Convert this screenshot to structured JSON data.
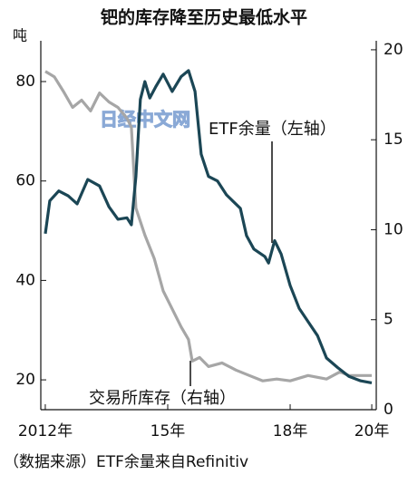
{
  "chart_data": {
    "type": "line",
    "title": "钯的库存降至历史最低水平",
    "y_unit": "吨",
    "source": "（数据来源）ETF余量来自Refinitiv",
    "watermark": "日经中文网",
    "xlim": [
      2011.89,
      2020.11
    ],
    "xticks": [
      {
        "value": 2012,
        "label": "2012年"
      },
      {
        "value": 2015,
        "label": "15年"
      },
      {
        "value": 2018,
        "label": "18年"
      },
      {
        "value": 2020,
        "label": "20年"
      }
    ],
    "ylim": [
      14,
      88.2
    ],
    "yticks": [
      20,
      40,
      60,
      80
    ],
    "y2lim": [
      0,
      20.5
    ],
    "y2ticks": [
      0,
      5,
      10,
      15,
      20
    ],
    "series": [
      {
        "name": "ETF余量（左轴）",
        "color": "#1b4655",
        "axis": "y",
        "x": [
          2012.0,
          2012.11,
          2012.33,
          2012.56,
          2012.78,
          2013.04,
          2013.33,
          2013.56,
          2013.78,
          2014.0,
          2014.11,
          2014.22,
          2014.33,
          2014.44,
          2014.56,
          2014.71,
          2014.89,
          2015.11,
          2015.33,
          2015.51,
          2015.67,
          2015.82,
          2016.0,
          2016.22,
          2016.44,
          2016.78,
          2016.93,
          2017.11,
          2017.38,
          2017.47,
          2017.62,
          2017.78,
          2018.0,
          2018.22,
          2018.44,
          2018.67,
          2018.89,
          2019.16,
          2019.44,
          2019.73,
          2020.0
        ],
        "values": [
          49.4,
          56,
          58,
          57,
          55.4,
          60.3,
          59,
          54.8,
          52.3,
          52.6,
          51.2,
          60.9,
          76.4,
          80,
          76.7,
          79,
          81.5,
          78,
          81,
          82.2,
          78,
          65.4,
          60.9,
          60,
          57.2,
          54.5,
          49,
          46.3,
          44.8,
          43.5,
          48,
          45.3,
          39,
          34.4,
          31.7,
          28.9,
          24.4,
          22.5,
          20.7,
          19.8,
          19.4
        ]
      },
      {
        "name": "交易所库存（右轴）",
        "color": "#a6a6a6",
        "axis": "y2",
        "x": [
          2012.0,
          2012.22,
          2012.44,
          2012.67,
          2012.89,
          2013.11,
          2013.33,
          2013.56,
          2013.78,
          2014.0,
          2014.11,
          2014.22,
          2014.44,
          2014.67,
          2014.89,
          2015.11,
          2015.33,
          2015.51,
          2015.6,
          2015.78,
          2016.0,
          2016.33,
          2016.67,
          2017.0,
          2017.33,
          2017.67,
          2018.0,
          2018.44,
          2018.89,
          2019.22,
          2019.44,
          2019.78,
          2020.0
        ],
        "values": [
          18.8,
          18.5,
          17.7,
          16.8,
          17.2,
          16.6,
          17.6,
          17.1,
          16.8,
          16.2,
          15.7,
          11.2,
          9.7,
          8.4,
          6.6,
          5.6,
          4.6,
          3.9,
          2.7,
          2.9,
          2.4,
          2.6,
          2.2,
          1.9,
          1.6,
          1.7,
          1.6,
          1.9,
          1.7,
          2.1,
          1.9,
          1.9,
          1.9
        ]
      }
    ]
  }
}
